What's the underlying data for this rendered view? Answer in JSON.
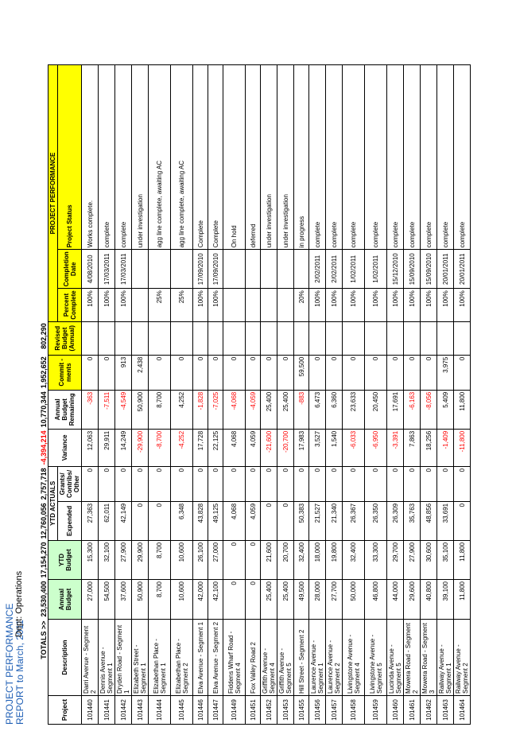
{
  "title_line1": "PROJECT PERFORMANCE",
  "title_line2": "REPORT to March, 2011",
  "dept": "Dept: Operations",
  "totals_label": "TOTALS >>",
  "totals": {
    "annual_budget": "23,530,400",
    "ytd_budget": "17,154,270",
    "expended": "12,760,056",
    "grants": "2,757,718",
    "variance": "-4,394,214",
    "remaining": "10,770,344",
    "commitments": "1,952,652",
    "revised": "802,290"
  },
  "headers": {
    "project": "Project",
    "description": "Description",
    "annual_budget": "Annual Budget",
    "ytd_budget": "YTD Budget",
    "ytd_actuals": "YTD ACTUALS",
    "expended": "Expended",
    "grants": "Grants/ Contribs/ Other",
    "variance": "Variance",
    "remaining": "Annual Budget Remaining",
    "commitments": "Commit -ments",
    "revised": "Revised Budget (Annual)",
    "project_performance": "PROJECT PERFORMANCE",
    "percent": "Percent Complete",
    "completion": "Completion Date",
    "status": "Project Status"
  },
  "rows": [
    {
      "project": "101440",
      "description": "Darri Avenue - Segment 2",
      "annual": "27,000",
      "ytd": "15,300",
      "expended": "27,363",
      "grants": "0",
      "variance": "12,063",
      "remaining": "-363",
      "commit": "0",
      "revised": "",
      "percent": "100%",
      "date": "4/08/2010",
      "status": "Works complete."
    },
    {
      "project": "101441",
      "description": "Dennis Avenue - Segment 1",
      "annual": "54,500",
      "ytd": "32,100",
      "expended": "62,011",
      "grants": "0",
      "variance": "29,911",
      "remaining": "-7,511",
      "commit": "0",
      "revised": "",
      "percent": "100%",
      "date": "17/03/2011",
      "status": "complete"
    },
    {
      "project": "101442",
      "description": "Dryden Road - Segment 1",
      "annual": "37,600",
      "ytd": "27,900",
      "expended": "42,149",
      "grants": "0",
      "variance": "14,249",
      "remaining": "-4,549",
      "commit": "913",
      "revised": "",
      "percent": "100%",
      "date": "17/03/2011",
      "status": "complete"
    },
    {
      "project": "101443",
      "description": "Elizabeth Street - Segment 1",
      "annual": "50,900",
      "ytd": "29,900",
      "expended": "0",
      "grants": "0",
      "variance": "-29,900",
      "remaining": "50,900",
      "commit": "2,438",
      "revised": "",
      "percent": "",
      "date": "",
      "status": "under investigation"
    },
    {
      "project": "101444",
      "description": "Elizabethan Place - Segment 1",
      "annual": "8,700",
      "ytd": "8,700",
      "expended": "0",
      "grants": "0",
      "variance": "-8,700",
      "remaining": "8,700",
      "commit": "0",
      "revised": "",
      "percent": "25%",
      "date": "",
      "status": "agg line complete, awaiting AC"
    },
    {
      "project": "101445",
      "description": "Elizabethan Place - Segment 2",
      "annual": "10,600",
      "ytd": "10,600",
      "expended": "6,348",
      "grants": "0",
      "variance": "-4,252",
      "remaining": "4,252",
      "commit": "0",
      "revised": "",
      "percent": "25%",
      "date": "",
      "status": "agg line complete, awaiting AC"
    },
    {
      "project": "101446",
      "description": "Elva Avenue - Segment 1",
      "annual": "42,000",
      "ytd": "26,100",
      "expended": "43,828",
      "grants": "0",
      "variance": "17,728",
      "remaining": "-1,828",
      "commit": "0",
      "revised": "",
      "percent": "100%",
      "date": "17/09/2010",
      "status": "Complete"
    },
    {
      "project": "101447",
      "description": "Elva Avenue - Segment 2",
      "annual": "42,100",
      "ytd": "27,000",
      "expended": "49,125",
      "grants": "0",
      "variance": "22,125",
      "remaining": "-7,025",
      "commit": "0",
      "revised": "",
      "percent": "100%",
      "date": "17/09/2010",
      "status": "Complete"
    },
    {
      "project": "101449",
      "description": "Fiddens Wharf Road - Segment 4",
      "annual": "0",
      "ytd": "0",
      "expended": "4,068",
      "grants": "0",
      "variance": "4,068",
      "remaining": "-4,068",
      "commit": "0",
      "revised": "",
      "percent": "",
      "date": "",
      "status": "On hold"
    },
    {
      "project": "101451",
      "description": "Fox Valley Road 2",
      "annual": "0",
      "ytd": "0",
      "expended": "4,059",
      "grants": "0",
      "variance": "4,059",
      "remaining": "-4,059",
      "commit": "0",
      "revised": "",
      "percent": "",
      "date": "",
      "status": "deferred"
    },
    {
      "project": "101452",
      "description": "Griffith Avenue - Segment 4",
      "annual": "25,400",
      "ytd": "21,600",
      "expended": "0",
      "grants": "0",
      "variance": "-21,600",
      "remaining": "25,400",
      "commit": "0",
      "revised": "",
      "percent": "",
      "date": "",
      "status": "under investigation"
    },
    {
      "project": "101453",
      "description": "Griffith Avenue - Segment 5",
      "annual": "25,400",
      "ytd": "20,700",
      "expended": "0",
      "grants": "0",
      "variance": "-20,700",
      "remaining": "25,400",
      "commit": "0",
      "revised": "",
      "percent": "",
      "date": "",
      "status": "under investigation"
    },
    {
      "project": "101455",
      "description": "Hill Street - Segment 2",
      "annual": "49,500",
      "ytd": "32,400",
      "expended": "50,383",
      "grants": "0",
      "variance": "17,983",
      "remaining": "-883",
      "commit": "59,500",
      "revised": "",
      "percent": "20%",
      "date": "",
      "status": "in progress"
    },
    {
      "project": "101456",
      "description": "Laurence Avenue - Segment 1",
      "annual": "28,000",
      "ytd": "18,000",
      "expended": "21,527",
      "grants": "0",
      "variance": "3,527",
      "remaining": "6,473",
      "commit": "0",
      "revised": "",
      "percent": "100%",
      "date": "2/02/2011",
      "status": "complete"
    },
    {
      "project": "101457",
      "description": "Laurence Avenue - Segment 2",
      "annual": "27,700",
      "ytd": "19,800",
      "expended": "21,340",
      "grants": "0",
      "variance": "1,540",
      "remaining": "6,360",
      "commit": "0",
      "revised": "",
      "percent": "100%",
      "date": "2/02/2011",
      "status": "complete"
    },
    {
      "project": "101458",
      "description": "Livingstone Avenue - Segment 4",
      "annual": "50,000",
      "ytd": "32,400",
      "expended": "26,367",
      "grants": "0",
      "variance": "-6,033",
      "remaining": "23,633",
      "commit": "0",
      "revised": "",
      "percent": "100%",
      "date": "1/02/2011",
      "status": "complete"
    },
    {
      "project": "101459",
      "description": "Livingstone Avenue - Segment 5",
      "annual": "46,800",
      "ytd": "33,300",
      "expended": "26,350",
      "grants": "0",
      "variance": "-6,950",
      "remaining": "20,450",
      "commit": "0",
      "revised": "",
      "percent": "100%",
      "date": "1/02/2011",
      "status": "complete"
    },
    {
      "project": "101460",
      "description": "Lucinda Avenue - Segment 5",
      "annual": "44,000",
      "ytd": "29,700",
      "expended": "26,309",
      "grants": "0",
      "variance": "-3,391",
      "remaining": "17,691",
      "commit": "0",
      "revised": "",
      "percent": "100%",
      "date": "15/12/2010",
      "status": "complete"
    },
    {
      "project": "101461",
      "description": "Mowera Road - Segment 2",
      "annual": "29,600",
      "ytd": "27,900",
      "expended": "35,763",
      "grants": "0",
      "variance": "7,863",
      "remaining": "-6,163",
      "commit": "0",
      "revised": "",
      "percent": "100%",
      "date": "15/09/2010",
      "status": "complete"
    },
    {
      "project": "101462",
      "description": "Mowera Road - Segment 3",
      "annual": "40,800",
      "ytd": "30,600",
      "expended": "48,856",
      "grants": "0",
      "variance": "18,256",
      "remaining": "-8,056",
      "commit": "0",
      "revised": "",
      "percent": "100%",
      "date": "15/09/2010",
      "status": "complete"
    },
    {
      "project": "101463",
      "description": "Railway Avenue - Segment 1",
      "annual": "39,100",
      "ytd": "35,100",
      "expended": "33,691",
      "grants": "0",
      "variance": "-1,409",
      "remaining": "5,409",
      "commit": "3,975",
      "revised": "",
      "percent": "100%",
      "date": "20/01/2011",
      "status": "complete"
    },
    {
      "project": "101464",
      "description": "Railway Avenue - Segment 2",
      "annual": "11,800",
      "ytd": "11,800",
      "expended": "0",
      "grants": "0",
      "variance": "-11,800",
      "remaining": "11,800",
      "commit": "0",
      "revised": "",
      "percent": "100%",
      "date": "20/01/2011",
      "status": "complete"
    }
  ]
}
